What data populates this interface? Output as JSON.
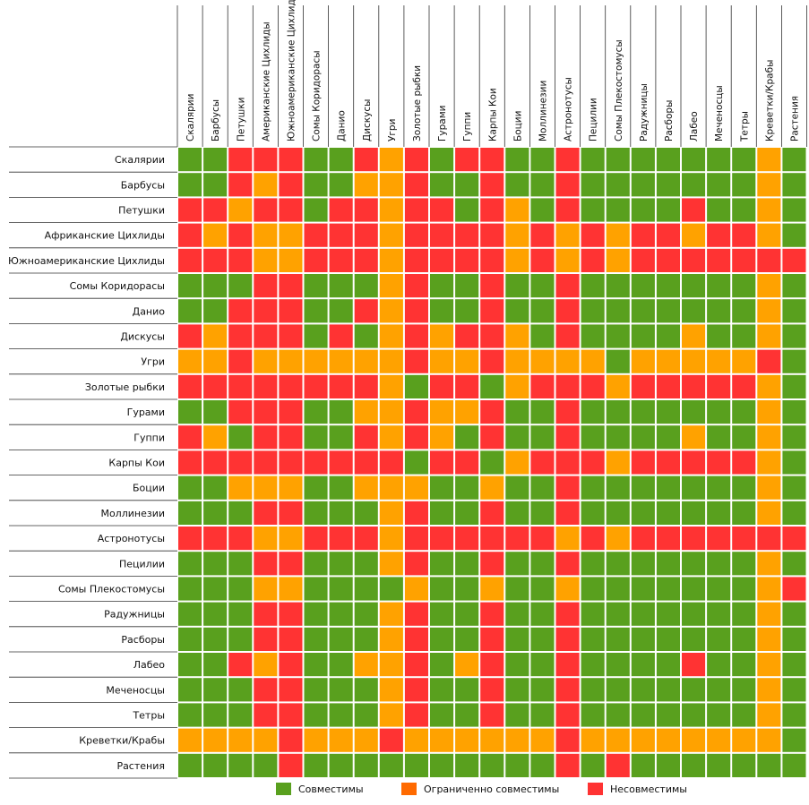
{
  "colors": {
    "green": "#59a01e",
    "orange": "#ffa200",
    "red": "#ff3333",
    "legend_orange": "#ff6a00",
    "grid_line": "#333333"
  },
  "legend": [
    {
      "label": "Совместимы",
      "color_key": "green"
    },
    {
      "label": "Ограниченно совместимы",
      "color_key": "legend_orange"
    },
    {
      "label": "Несовместимы",
      "color_key": "red"
    }
  ],
  "chart_data": {
    "type": "heatmap",
    "value_legend": {
      "G": "Совместимы",
      "O": "Ограниченно совместимы",
      "R": "Несовместимы"
    },
    "columns": [
      "Скалярии",
      "Барбусы",
      "Петушки",
      "Американские Цихлиды",
      "Южноамериканские Цихлиды",
      "Сомы Коридорасы",
      "Данио",
      "Дискусы",
      "Угри",
      "Золотые рыбки",
      "Гурами",
      "Гуппи",
      "Карпы Кои",
      "Боции",
      "Моллинезии",
      "Астронотусы",
      "Пецилии",
      "Сомы Плекостомусы",
      "Радужницы",
      "Расборы",
      "Лабео",
      "Меченосцы",
      "Тетры",
      "Креветки/Крабы",
      "Растения"
    ],
    "rows": [
      {
        "label": "Скалярии",
        "cells": [
          "G",
          "G",
          "R",
          "R",
          "R",
          "G",
          "G",
          "R",
          "O",
          "R",
          "G",
          "R",
          "R",
          "G",
          "G",
          "R",
          "G",
          "G",
          "G",
          "G",
          "G",
          "G",
          "G",
          "O",
          "G"
        ]
      },
      {
        "label": "Барбусы",
        "cells": [
          "G",
          "G",
          "R",
          "O",
          "R",
          "G",
          "G",
          "O",
          "O",
          "R",
          "G",
          "G",
          "R",
          "G",
          "G",
          "R",
          "G",
          "G",
          "G",
          "G",
          "G",
          "G",
          "G",
          "O",
          "G"
        ]
      },
      {
        "label": "Петушки",
        "cells": [
          "R",
          "R",
          "O",
          "R",
          "R",
          "G",
          "R",
          "R",
          "O",
          "R",
          "R",
          "G",
          "R",
          "O",
          "G",
          "R",
          "G",
          "G",
          "G",
          "G",
          "R",
          "G",
          "G",
          "O",
          "G"
        ]
      },
      {
        "label": "Африканские Цихлиды",
        "cells": [
          "R",
          "O",
          "R",
          "O",
          "O",
          "R",
          "R",
          "R",
          "O",
          "R",
          "R",
          "R",
          "R",
          "O",
          "R",
          "O",
          "R",
          "O",
          "R",
          "R",
          "O",
          "R",
          "R",
          "O",
          "G"
        ]
      },
      {
        "label": "Южноамериканские Цихлиды",
        "cells": [
          "R",
          "R",
          "R",
          "O",
          "O",
          "R",
          "R",
          "R",
          "O",
          "R",
          "R",
          "R",
          "R",
          "O",
          "R",
          "O",
          "R",
          "O",
          "R",
          "R",
          "R",
          "R",
          "R",
          "R",
          "R"
        ]
      },
      {
        "label": "Сомы Коридорасы",
        "cells": [
          "G",
          "G",
          "G",
          "R",
          "R",
          "G",
          "G",
          "G",
          "O",
          "R",
          "G",
          "G",
          "R",
          "G",
          "G",
          "R",
          "G",
          "G",
          "G",
          "G",
          "G",
          "G",
          "G",
          "O",
          "G"
        ]
      },
      {
        "label": "Данио",
        "cells": [
          "G",
          "G",
          "R",
          "R",
          "R",
          "G",
          "G",
          "R",
          "O",
          "R",
          "G",
          "G",
          "R",
          "G",
          "G",
          "R",
          "G",
          "G",
          "G",
          "G",
          "G",
          "G",
          "G",
          "O",
          "G"
        ]
      },
      {
        "label": "Дискусы",
        "cells": [
          "R",
          "O",
          "R",
          "R",
          "R",
          "G",
          "R",
          "G",
          "O",
          "R",
          "O",
          "R",
          "R",
          "O",
          "G",
          "R",
          "G",
          "G",
          "G",
          "G",
          "O",
          "G",
          "G",
          "O",
          "G"
        ]
      },
      {
        "label": "Угри",
        "cells": [
          "O",
          "O",
          "R",
          "O",
          "O",
          "O",
          "O",
          "O",
          "O",
          "R",
          "O",
          "O",
          "R",
          "O",
          "O",
          "O",
          "O",
          "G",
          "O",
          "O",
          "O",
          "O",
          "O",
          "R",
          "G"
        ]
      },
      {
        "label": "Золотые рыбки",
        "cells": [
          "R",
          "R",
          "R",
          "R",
          "R",
          "R",
          "R",
          "R",
          "O",
          "G",
          "R",
          "R",
          "G",
          "O",
          "R",
          "R",
          "R",
          "O",
          "R",
          "R",
          "R",
          "R",
          "R",
          "O",
          "G"
        ]
      },
      {
        "label": "Гурами",
        "cells": [
          "G",
          "G",
          "R",
          "R",
          "R",
          "G",
          "G",
          "O",
          "O",
          "R",
          "O",
          "O",
          "R",
          "G",
          "G",
          "R",
          "G",
          "G",
          "G",
          "G",
          "G",
          "G",
          "G",
          "O",
          "G"
        ]
      },
      {
        "label": "Гуппи",
        "cells": [
          "R",
          "O",
          "G",
          "R",
          "R",
          "G",
          "G",
          "R",
          "O",
          "R",
          "O",
          "G",
          "R",
          "G",
          "G",
          "R",
          "G",
          "G",
          "G",
          "G",
          "O",
          "G",
          "G",
          "O",
          "G"
        ]
      },
      {
        "label": "Карпы Кои",
        "cells": [
          "R",
          "R",
          "R",
          "R",
          "R",
          "R",
          "R",
          "R",
          "R",
          "G",
          "R",
          "R",
          "G",
          "O",
          "R",
          "R",
          "R",
          "O",
          "R",
          "R",
          "R",
          "R",
          "R",
          "O",
          "G"
        ]
      },
      {
        "label": "Боции",
        "cells": [
          "G",
          "G",
          "O",
          "O",
          "O",
          "G",
          "G",
          "O",
          "O",
          "O",
          "G",
          "G",
          "O",
          "G",
          "G",
          "R",
          "G",
          "G",
          "G",
          "G",
          "G",
          "G",
          "G",
          "O",
          "G"
        ]
      },
      {
        "label": "Моллинезии",
        "cells": [
          "G",
          "G",
          "G",
          "R",
          "R",
          "G",
          "G",
          "G",
          "O",
          "R",
          "G",
          "G",
          "R",
          "G",
          "G",
          "R",
          "G",
          "G",
          "G",
          "G",
          "G",
          "G",
          "G",
          "O",
          "G"
        ]
      },
      {
        "label": "Астронотусы",
        "cells": [
          "R",
          "R",
          "R",
          "O",
          "O",
          "R",
          "R",
          "R",
          "O",
          "R",
          "R",
          "R",
          "R",
          "R",
          "R",
          "O",
          "R",
          "O",
          "R",
          "R",
          "R",
          "R",
          "R",
          "R",
          "R"
        ]
      },
      {
        "label": "Пецилии",
        "cells": [
          "G",
          "G",
          "G",
          "R",
          "R",
          "G",
          "G",
          "G",
          "O",
          "R",
          "G",
          "G",
          "R",
          "G",
          "G",
          "R",
          "G",
          "G",
          "G",
          "G",
          "G",
          "G",
          "G",
          "O",
          "G"
        ]
      },
      {
        "label": "Сомы Плекостомусы",
        "cells": [
          "G",
          "G",
          "G",
          "O",
          "O",
          "G",
          "G",
          "G",
          "G",
          "O",
          "G",
          "G",
          "O",
          "G",
          "G",
          "O",
          "G",
          "G",
          "G",
          "G",
          "G",
          "G",
          "G",
          "O",
          "R"
        ]
      },
      {
        "label": "Радужницы",
        "cells": [
          "G",
          "G",
          "G",
          "R",
          "R",
          "G",
          "G",
          "G",
          "O",
          "R",
          "G",
          "G",
          "R",
          "G",
          "G",
          "R",
          "G",
          "G",
          "G",
          "G",
          "G",
          "G",
          "G",
          "O",
          "G"
        ]
      },
      {
        "label": "Расборы",
        "cells": [
          "G",
          "G",
          "G",
          "R",
          "R",
          "G",
          "G",
          "G",
          "O",
          "R",
          "G",
          "G",
          "R",
          "G",
          "G",
          "R",
          "G",
          "G",
          "G",
          "G",
          "G",
          "G",
          "G",
          "O",
          "G"
        ]
      },
      {
        "label": "Лабео",
        "cells": [
          "G",
          "G",
          "R",
          "O",
          "R",
          "G",
          "G",
          "O",
          "O",
          "R",
          "G",
          "O",
          "R",
          "G",
          "G",
          "R",
          "G",
          "G",
          "G",
          "G",
          "R",
          "G",
          "G",
          "O",
          "G"
        ]
      },
      {
        "label": "Меченосцы",
        "cells": [
          "G",
          "G",
          "G",
          "R",
          "R",
          "G",
          "G",
          "G",
          "O",
          "R",
          "G",
          "G",
          "R",
          "G",
          "G",
          "R",
          "G",
          "G",
          "G",
          "G",
          "G",
          "G",
          "G",
          "O",
          "G"
        ]
      },
      {
        "label": "Тетры",
        "cells": [
          "G",
          "G",
          "G",
          "R",
          "R",
          "G",
          "G",
          "G",
          "O",
          "R",
          "G",
          "G",
          "R",
          "G",
          "G",
          "R",
          "G",
          "G",
          "G",
          "G",
          "G",
          "G",
          "G",
          "O",
          "G"
        ]
      },
      {
        "label": "Креветки/Крабы",
        "cells": [
          "O",
          "O",
          "O",
          "O",
          "R",
          "O",
          "O",
          "O",
          "R",
          "O",
          "O",
          "O",
          "O",
          "O",
          "O",
          "R",
          "O",
          "O",
          "O",
          "O",
          "O",
          "O",
          "O",
          "O",
          "G"
        ]
      },
      {
        "label": "Растения",
        "cells": [
          "G",
          "G",
          "G",
          "G",
          "R",
          "G",
          "G",
          "G",
          "G",
          "G",
          "G",
          "G",
          "G",
          "G",
          "G",
          "R",
          "G",
          "R",
          "G",
          "G",
          "G",
          "G",
          "G",
          "G",
          "G"
        ]
      }
    ]
  }
}
